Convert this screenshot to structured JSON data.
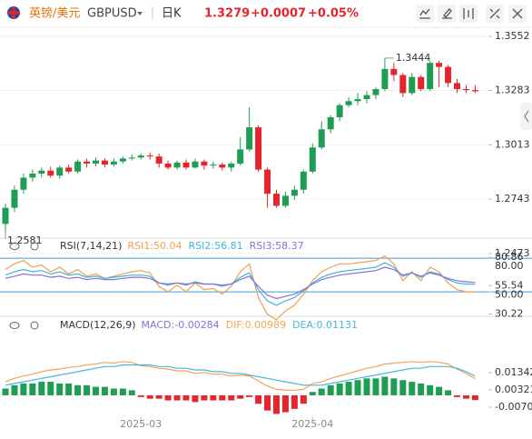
{
  "header": {
    "pair_name": "英镑/美元",
    "symbol": "GBPUSD",
    "period": "日K",
    "price": "1.3279",
    "change": "+0.0007",
    "change_pct": "+0.05%"
  },
  "chart_data": [
    {
      "type": "candlestick",
      "open": [
        1.262,
        1.27,
        1.279,
        1.285,
        1.287,
        1.2885,
        1.286,
        1.29,
        1.288,
        1.293,
        1.292,
        1.2935,
        1.2915,
        1.293,
        1.2945,
        1.295,
        1.296,
        1.2955,
        1.292,
        1.29,
        1.2925,
        1.29,
        1.293,
        1.291,
        1.2915,
        1.29,
        1.292,
        1.299,
        1.31,
        1.289,
        1.277,
        1.271,
        1.276,
        1.279,
        1.288,
        1.3,
        1.309,
        1.315,
        1.321,
        1.323,
        1.324,
        1.326,
        1.329,
        1.339,
        1.336,
        1.327,
        1.335,
        1.329,
        1.342,
        1.34,
        1.332,
        1.329,
        1.3285
      ],
      "high": [
        1.272,
        1.281,
        1.287,
        1.289,
        1.29,
        1.2905,
        1.291,
        1.2915,
        1.294,
        1.2945,
        1.295,
        1.2945,
        1.2945,
        1.2955,
        1.2965,
        1.297,
        1.2975,
        1.297,
        1.2935,
        1.2935,
        1.294,
        1.2945,
        1.294,
        1.293,
        1.2925,
        1.293,
        1.305,
        1.32,
        1.311,
        1.29,
        1.279,
        1.278,
        1.281,
        1.289,
        1.302,
        1.313,
        1.316,
        1.322,
        1.325,
        1.327,
        1.328,
        1.33,
        1.3444,
        1.342,
        1.337,
        1.337,
        1.336,
        1.343,
        1.343,
        1.341,
        1.334,
        1.331,
        1.331
      ],
      "low": [
        1.2581,
        1.268,
        1.277,
        1.283,
        1.285,
        1.285,
        1.2845,
        1.287,
        1.287,
        1.29,
        1.2905,
        1.29,
        1.2905,
        1.292,
        1.2935,
        1.294,
        1.294,
        1.29,
        1.289,
        1.289,
        1.289,
        1.2895,
        1.289,
        1.2895,
        1.2885,
        1.288,
        1.291,
        1.298,
        1.288,
        1.27,
        1.27,
        1.27,
        1.274,
        1.277,
        1.287,
        1.299,
        1.307,
        1.313,
        1.32,
        1.321,
        1.322,
        1.324,
        1.328,
        1.333,
        1.325,
        1.326,
        1.328,
        1.328,
        1.33,
        1.33,
        1.327,
        1.327,
        1.327
      ],
      "close": [
        1.27,
        1.279,
        1.285,
        1.287,
        1.2885,
        1.286,
        1.29,
        1.288,
        1.293,
        1.292,
        1.2935,
        1.2915,
        1.293,
        1.2945,
        1.295,
        1.296,
        1.2955,
        1.292,
        1.29,
        1.2925,
        1.29,
        1.293,
        1.291,
        1.2915,
        1.29,
        1.292,
        1.299,
        1.31,
        1.289,
        1.277,
        1.271,
        1.276,
        1.279,
        1.288,
        1.3,
        1.309,
        1.315,
        1.321,
        1.323,
        1.324,
        1.326,
        1.329,
        1.339,
        1.336,
        1.327,
        1.335,
        1.329,
        1.342,
        1.34,
        1.332,
        1.329,
        1.3285,
        1.3279
      ],
      "up_color": "#1f9d55",
      "down_color": "#e5252b",
      "ylim": [
        1.2423,
        1.3597
      ],
      "yticks": [
        1.2473,
        1.2743,
        1.3013,
        1.3283,
        1.3552
      ],
      "grid": true,
      "max_label": 1.3444,
      "min_label": 1.2581
    },
    {
      "type": "line",
      "title": "RSI(7,14,21)",
      "series": [
        {
          "name": "RSI1:50.04",
          "color": "#f0a050",
          "values": [
            70,
            75,
            78,
            72,
            74,
            68,
            72,
            66,
            70,
            64,
            66,
            62,
            64,
            66,
            68,
            69,
            67,
            55,
            50,
            56,
            50,
            58,
            52,
            53,
            48,
            55,
            68,
            75,
            45,
            30,
            25,
            33,
            38,
            48,
            60,
            68,
            72,
            75,
            75,
            76,
            77,
            78,
            82,
            75,
            60,
            68,
            60,
            72,
            68,
            58,
            52,
            50,
            50.04
          ]
        },
        {
          "name": "RSI2:56.81",
          "color": "#3fb6d8",
          "values": [
            65,
            68,
            70,
            68,
            69,
            66,
            68,
            65,
            66,
            63,
            64,
            62,
            63,
            64,
            65,
            65,
            64,
            58,
            56,
            58,
            56,
            59,
            57,
            57,
            55,
            57,
            63,
            67,
            52,
            42,
            38,
            42,
            45,
            51,
            58,
            63,
            66,
            68,
            69,
            70,
            71,
            72,
            76,
            72,
            64,
            67,
            63,
            68,
            66,
            61,
            58,
            57,
            56.81
          ]
        },
        {
          "name": "RSI3:58.37",
          "color": "#8a6fd8",
          "values": [
            62,
            64,
            66,
            65,
            65,
            63,
            64,
            62,
            63,
            61,
            62,
            61,
            61,
            62,
            63,
            63,
            62,
            58,
            57,
            58,
            57,
            58,
            57,
            57,
            56,
            57,
            61,
            64,
            55,
            47,
            44,
            46,
            48,
            52,
            57,
            61,
            63,
            65,
            66,
            67,
            68,
            69,
            72,
            70,
            65,
            67,
            64,
            67,
            65,
            62,
            60,
            59,
            58.37
          ]
        }
      ],
      "ylim": [
        29,
        98
      ],
      "yticks": [
        {
          "value": 80,
          "label": "80.00"
        },
        80.86,
        55.54,
        {
          "value": 50,
          "label": "50.00"
        },
        30.22
      ],
      "reference_lines": [
        80,
        50
      ],
      "reference_color": "#3aa0e0"
    },
    {
      "type": "macd",
      "title": "MACD(12,26,9)",
      "categories": [
        null,
        null,
        null,
        null,
        null,
        null,
        null,
        null,
        null,
        null,
        null,
        null,
        null,
        null,
        null,
        "2025-03",
        null,
        null,
        null,
        null,
        null,
        null,
        null,
        null,
        null,
        null,
        null,
        null,
        null,
        null,
        null,
        null,
        null,
        null,
        "2025-04",
        null,
        null,
        null,
        null,
        null,
        null,
        null,
        null,
        null,
        null,
        null,
        null,
        null,
        null,
        null,
        null,
        null,
        null
      ],
      "histogram": {
        "name": "MACD:-0.00284",
        "color": "#8a6fd8",
        "up_color": "#1f9d55",
        "down_color": "#e5252b",
        "values": [
          0.004,
          0.006,
          0.007,
          0.007,
          0.008,
          0.008,
          0.007,
          0.007,
          0.006,
          0.006,
          0.005,
          0.005,
          0.004,
          0.004,
          0.003,
          -0.001,
          -0.002,
          -0.002,
          -0.003,
          -0.003,
          -0.003,
          -0.004,
          -0.003,
          -0.003,
          -0.003,
          -0.003,
          -0.002,
          -0.001,
          -0.005,
          -0.009,
          -0.011,
          -0.01,
          -0.008,
          -0.005,
          0.002,
          0.004,
          0.006,
          0.007,
          0.008,
          0.009,
          0.01,
          0.01,
          0.011,
          0.01,
          0.009,
          0.008,
          0.007,
          0.006,
          0.005,
          0.003,
          -0.001,
          -0.002,
          -0.00284
        ]
      },
      "series": [
        {
          "name": "DIF:0.00989",
          "color": "#f3a35b",
          "values": [
            0.008,
            0.01,
            0.0115,
            0.0125,
            0.014,
            0.015,
            0.0155,
            0.0165,
            0.017,
            0.018,
            0.0185,
            0.0195,
            0.019,
            0.02,
            0.0195,
            0.0175,
            0.017,
            0.016,
            0.0155,
            0.0145,
            0.0145,
            0.013,
            0.0135,
            0.0125,
            0.0125,
            0.0115,
            0.012,
            0.0115,
            0.0085,
            0.0055,
            0.0035,
            0.003,
            0.003,
            0.0035,
            0.007,
            0.008,
            0.01,
            0.0115,
            0.013,
            0.0145,
            0.016,
            0.017,
            0.0185,
            0.019,
            0.0195,
            0.02,
            0.0195,
            0.02,
            0.0195,
            0.0185,
            0.0155,
            0.013,
            0.00989
          ]
        },
        {
          "name": "DEA:0.01131",
          "color": "#47b7d6",
          "values": [
            0.006,
            0.007,
            0.008,
            0.009,
            0.01,
            0.011,
            0.012,
            0.013,
            0.014,
            0.015,
            0.016,
            0.017,
            0.017,
            0.018,
            0.018,
            0.018,
            0.018,
            0.017,
            0.017,
            0.016,
            0.016,
            0.015,
            0.015,
            0.014,
            0.014,
            0.013,
            0.013,
            0.012,
            0.011,
            0.01,
            0.009,
            0.008,
            0.007,
            0.006,
            0.006,
            0.006,
            0.007,
            0.008,
            0.009,
            0.01,
            0.011,
            0.012,
            0.013,
            0.014,
            0.015,
            0.016,
            0.016,
            0.017,
            0.017,
            0.017,
            0.016,
            0.014,
            0.01131
          ]
        }
      ],
      "ylim": [
        -0.0124,
        0.036
      ],
      "yticks": [
        -0.00701,
        0.00321,
        0.01342
      ]
    }
  ]
}
